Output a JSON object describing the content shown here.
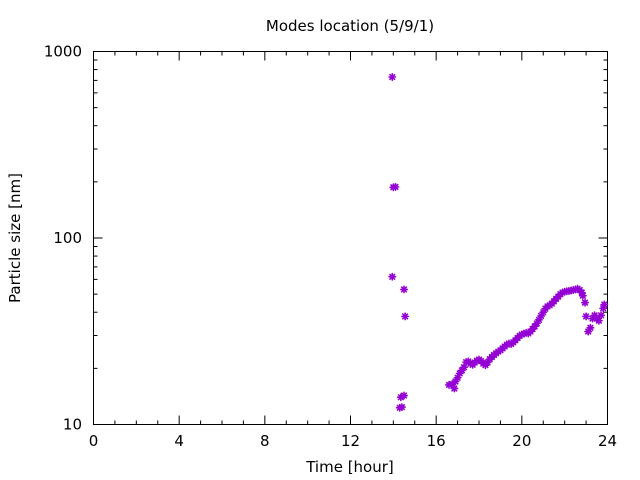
{
  "chart_data": {
    "type": "scatter",
    "title": "Modes location (5/9/1)",
    "xlabel": "Time [hour]",
    "ylabel": "Particle size [nm]",
    "xlim": [
      0,
      24
    ],
    "ylim": [
      10,
      1000
    ],
    "yscale": "log",
    "grid": false,
    "xticks": [
      0,
      4,
      8,
      12,
      16,
      20,
      24
    ],
    "xtick_labels": [
      "0",
      "4",
      "8",
      "12",
      "16",
      "20",
      "24"
    ],
    "yticks": [
      10,
      100,
      1000
    ],
    "ytick_labels": [
      "10",
      "100",
      "1000"
    ],
    "marker_color": "#9400d3",
    "series": [
      {
        "x": [
          13.95,
          14.0,
          14.1,
          13.95,
          14.5,
          14.55,
          14.35,
          14.5,
          14.3,
          14.4,
          16.6,
          16.75,
          16.85,
          16.9,
          17.0,
          17.1,
          17.2,
          17.3,
          17.4,
          17.5,
          17.6,
          17.7,
          17.8,
          17.9,
          18.0,
          18.1,
          18.2,
          18.3,
          18.4,
          18.5,
          18.6,
          18.7,
          18.8,
          18.9,
          19.0,
          19.1,
          19.2,
          19.3,
          19.4,
          19.5,
          19.6,
          19.7,
          19.8,
          19.9,
          20.0,
          20.1,
          20.2,
          20.3,
          20.4,
          20.5,
          20.6,
          20.7,
          20.8,
          20.9,
          21.0,
          21.1,
          21.2,
          21.3,
          21.4,
          21.5,
          21.6,
          21.7,
          21.8,
          21.9,
          22.0,
          22.1,
          22.2,
          22.3,
          22.4,
          22.5,
          22.6,
          22.7,
          22.8,
          22.85,
          22.95,
          23.0,
          23.1,
          23.2,
          23.3,
          23.4,
          23.5,
          23.6,
          23.7,
          23.8,
          23.85
        ],
        "y": [
          730,
          187,
          188,
          62,
          53,
          38,
          14,
          14.3,
          12.3,
          12.4,
          16.3,
          16.5,
          15.6,
          17.0,
          17.8,
          18.8,
          19.5,
          20.3,
          21.6,
          21.8,
          21.2,
          20.9,
          21.5,
          22.0,
          22.3,
          21.9,
          21.2,
          20.8,
          21.5,
          22.4,
          23.0,
          23.6,
          24.1,
          24.6,
          25.0,
          25.6,
          26.2,
          26.8,
          27.2,
          27.0,
          27.6,
          28.3,
          29.1,
          29.9,
          30.4,
          30.7,
          31.0,
          30.8,
          31.5,
          32.5,
          33.6,
          34.8,
          36.4,
          38.2,
          40.0,
          41.8,
          43.0,
          43.6,
          44.5,
          45.8,
          47.2,
          48.5,
          50.0,
          51.0,
          51.5,
          51.8,
          52.0,
          52.3,
          52.6,
          53.0,
          53.5,
          52.6,
          51.0,
          49.0,
          45.0,
          38.0,
          31.5,
          33.0,
          37.0,
          38.5,
          37.0,
          36.0,
          38.5,
          42.0,
          44.0
        ]
      }
    ]
  }
}
